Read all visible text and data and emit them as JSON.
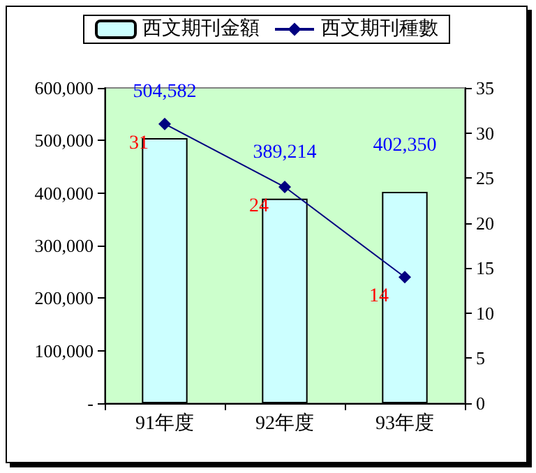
{
  "chart_data": {
    "type": "bar",
    "categories": [
      "91年度",
      "92年度",
      "93年度"
    ],
    "series": [
      {
        "name": "西文期刊金額",
        "color": "#ccffff",
        "values": [
          504582,
          389214,
          402350
        ],
        "value_labels": [
          "504,582",
          "389,214",
          "402,350"
        ]
      },
      {
        "name": "西文期刊種數",
        "type": "line",
        "axis": "y2",
        "color": "#000080",
        "values": [
          31,
          24,
          14
        ],
        "value_labels": [
          "31",
          "24",
          "14"
        ]
      }
    ],
    "ylim": [
      0,
      600000
    ],
    "yticks": [
      {
        "value": 0,
        "label": "-"
      },
      {
        "value": 100000,
        "label": "100,000"
      },
      {
        "value": 200000,
        "label": "200,000"
      },
      {
        "value": 300000,
        "label": "300,000"
      },
      {
        "value": 400000,
        "label": "400,000"
      },
      {
        "value": 500000,
        "label": "500,000"
      },
      {
        "value": 600000,
        "label": "600,000"
      }
    ],
    "y2lim": [
      0,
      35
    ],
    "y2ticks": [
      0,
      5,
      10,
      15,
      20,
      25,
      30,
      35
    ],
    "marker": "diamond",
    "legend": "top",
    "grid": false
  }
}
